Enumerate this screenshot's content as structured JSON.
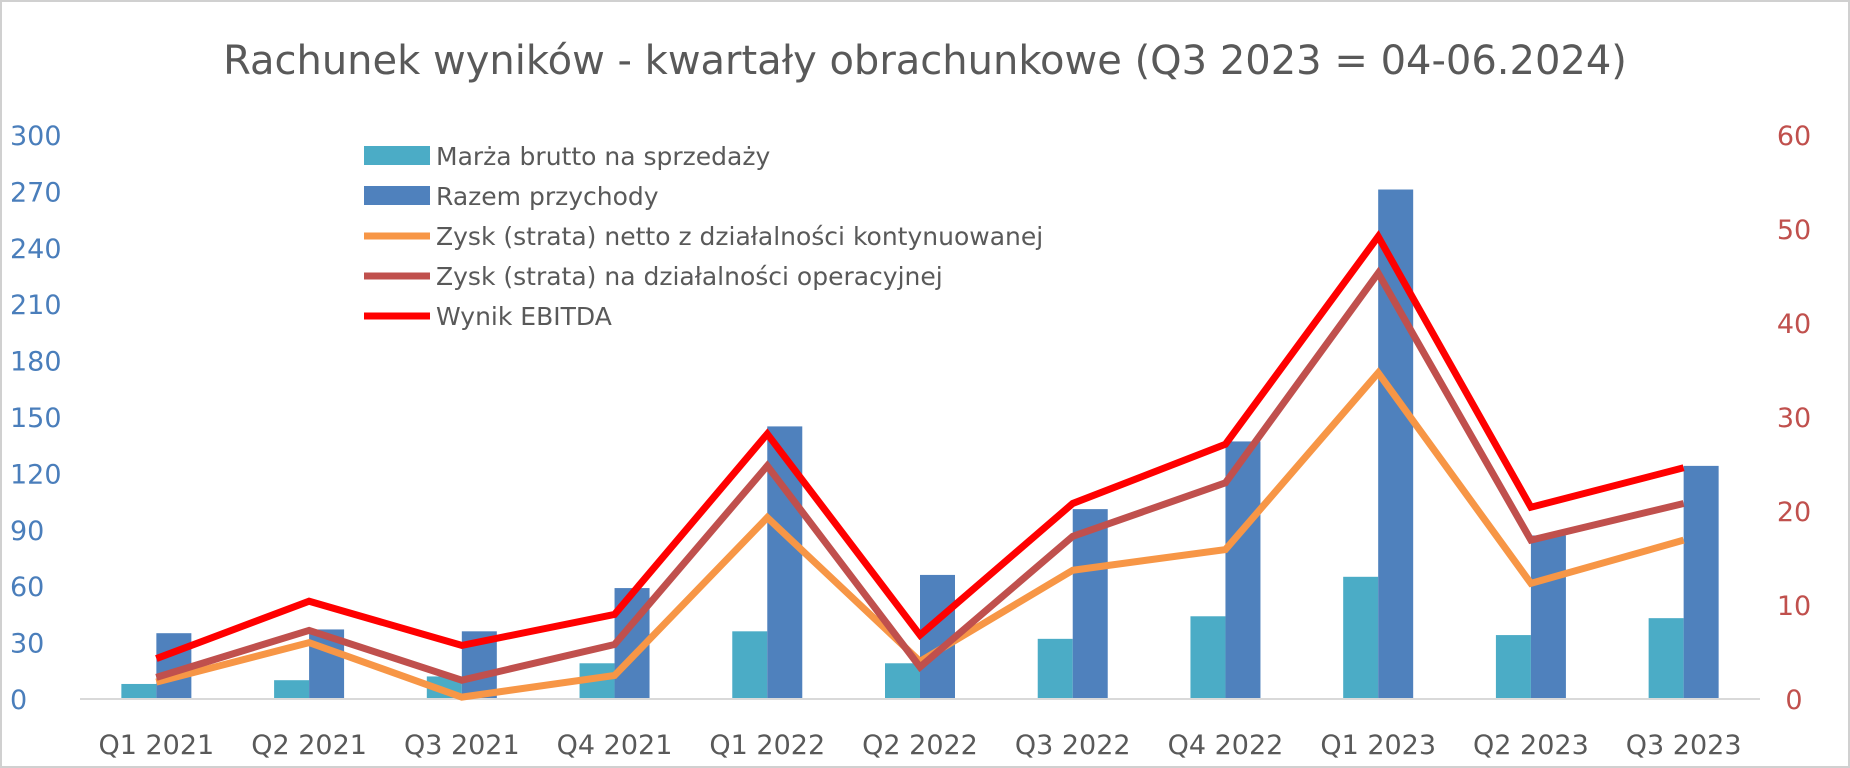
{
  "chart_data": {
    "type": "bar",
    "title": "Rachunek wyników - kwartały obrachunkowe (Q3 2023 = 04-06.2024)",
    "categories": [
      "Q1 2021",
      "Q2 2021",
      "Q3 2021",
      "Q4 2021",
      "Q1 2022",
      "Q2 2022",
      "Q3 2022",
      "Q4 2022",
      "Q1 2023",
      "Q2 2023",
      "Q3 2023"
    ],
    "y_left": {
      "ticks": [
        "0",
        "30",
        "60",
        "90",
        "120",
        "150",
        "180",
        "210",
        "240",
        "270",
        "300"
      ],
      "ylim": [
        0,
        300
      ]
    },
    "y_right": {
      "ticks": [
        "0",
        "10",
        "20",
        "30",
        "40",
        "50",
        "60"
      ],
      "ylim": [
        0,
        60
      ]
    },
    "grid": false,
    "legend_position": "top-left",
    "series": [
      {
        "name": "Marża brutto na sprzedaży",
        "kind": "bar",
        "axis": "left",
        "color": "#4bacc6",
        "values": [
          8,
          10,
          12,
          19,
          36,
          19,
          32,
          44,
          65,
          34,
          43
        ]
      },
      {
        "name": "Razem przychody",
        "kind": "bar",
        "axis": "left",
        "color": "#4f81bd",
        "values": [
          35,
          37,
          36,
          59,
          145,
          66,
          101,
          137,
          271,
          87,
          124
        ]
      },
      {
        "name": "Zysk (strata) netto z działalności kontynuowanej",
        "kind": "line",
        "axis": "right",
        "color": "#f79646",
        "values": [
          1.8,
          6.0,
          0.2,
          2.5,
          19.3,
          4.0,
          13.7,
          15.9,
          34.7,
          12.3,
          16.9
        ]
      },
      {
        "name": "Zysk (strata) na działalności operacyjnej",
        "kind": "line",
        "axis": "right",
        "color": "#c0504d",
        "values": [
          2.3,
          7.3,
          2.0,
          5.8,
          24.8,
          3.4,
          17.3,
          23.0,
          45.3,
          16.9,
          20.8
        ]
      },
      {
        "name": "Wynik EBITDA",
        "kind": "line",
        "axis": "right",
        "color": "#ff0000",
        "values": [
          4.3,
          10.4,
          5.7,
          9.0,
          28.2,
          6.8,
          20.8,
          27.1,
          49.2,
          20.4,
          24.6
        ]
      }
    ]
  }
}
